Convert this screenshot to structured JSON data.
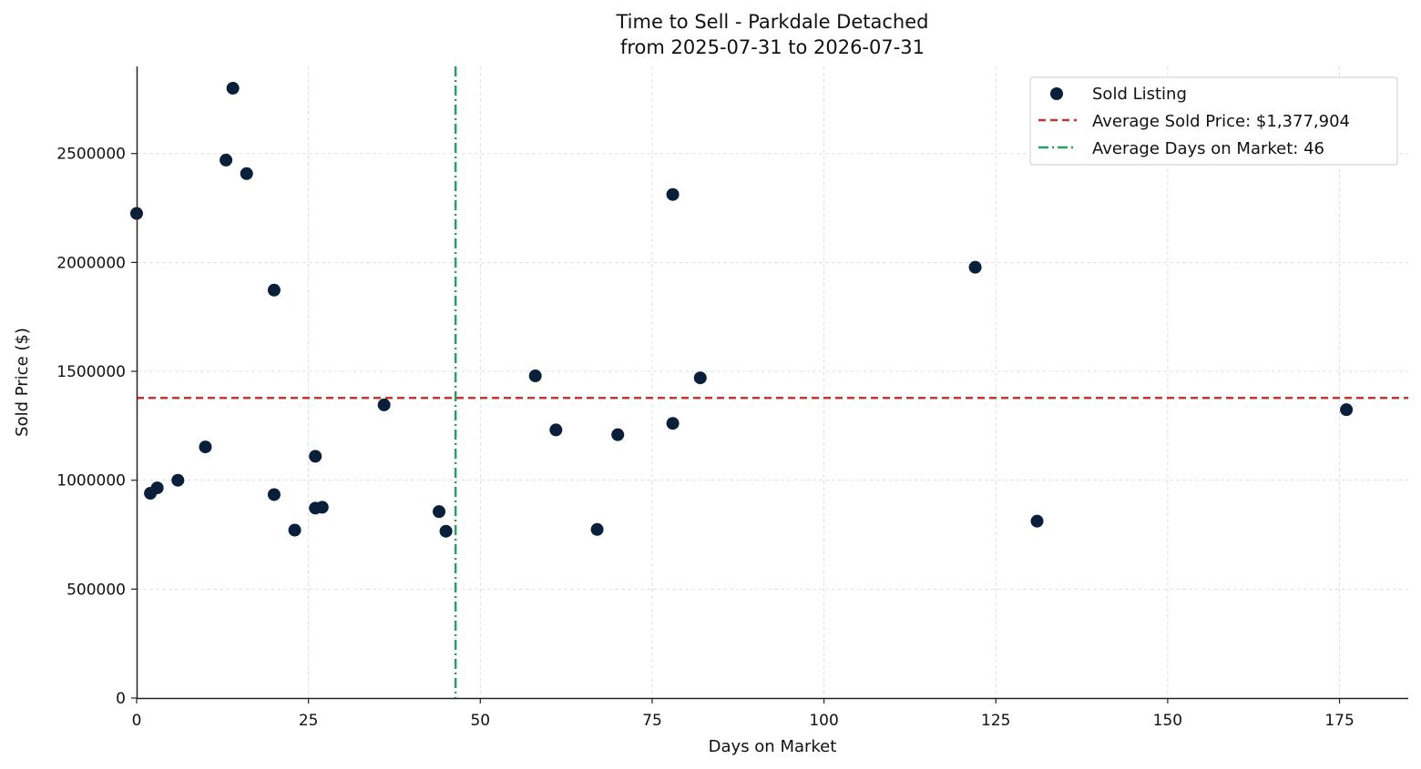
{
  "chart_data": {
    "type": "scatter",
    "title": "Time to Sell - Parkdale Detached",
    "subtitle": "from 2025-07-31 to 2026-07-31",
    "xlabel": "Days on Market",
    "ylabel": "Sold Price ($)",
    "xlim": [
      0,
      185
    ],
    "ylim": [
      0,
      2900000
    ],
    "xticks": [
      0,
      25,
      50,
      75,
      100,
      125,
      150,
      175
    ],
    "yticks": [
      0,
      500000,
      1000000,
      1500000,
      2000000,
      2500000
    ],
    "xtick_labels": [
      "0",
      "25",
      "50",
      "75",
      "100",
      "125",
      "150",
      "175"
    ],
    "ytick_labels": [
      "0",
      "500000",
      "1000000",
      "1500000",
      "2000000",
      "2500000"
    ],
    "grid": true,
    "legend_position": "top-right",
    "series": [
      {
        "name": "Sold Listing",
        "color": "#0a1f3a",
        "points": [
          {
            "x": 0,
            "y": 2225000
          },
          {
            "x": 2,
            "y": 940000
          },
          {
            "x": 3,
            "y": 965000
          },
          {
            "x": 6,
            "y": 1000000
          },
          {
            "x": 10,
            "y": 1153000
          },
          {
            "x": 13,
            "y": 2470000
          },
          {
            "x": 14,
            "y": 2800000
          },
          {
            "x": 16,
            "y": 2408000
          },
          {
            "x": 20,
            "y": 1873000
          },
          {
            "x": 20,
            "y": 934000
          },
          {
            "x": 23,
            "y": 771000
          },
          {
            "x": 26,
            "y": 1110000
          },
          {
            "x": 26,
            "y": 872000
          },
          {
            "x": 27,
            "y": 876000
          },
          {
            "x": 36,
            "y": 1346000
          },
          {
            "x": 44,
            "y": 856000
          },
          {
            "x": 45,
            "y": 766000
          },
          {
            "x": 58,
            "y": 1479000
          },
          {
            "x": 61,
            "y": 1231000
          },
          {
            "x": 67,
            "y": 774000
          },
          {
            "x": 70,
            "y": 1209000
          },
          {
            "x": 78,
            "y": 2312000
          },
          {
            "x": 78,
            "y": 1261000
          },
          {
            "x": 82,
            "y": 1470000
          },
          {
            "x": 122,
            "y": 1978000
          },
          {
            "x": 131,
            "y": 812000
          },
          {
            "x": 176,
            "y": 1324000
          }
        ]
      }
    ],
    "reference_lines": [
      {
        "name": "Average Sold Price: $1,377,904",
        "orientation": "horizontal",
        "value": 1377904,
        "color": "#c0392b",
        "style": "dashed"
      },
      {
        "name": "Average Days on Market: 46",
        "orientation": "vertical",
        "value": 46.4,
        "color": "#27a061",
        "style": "dashdot"
      }
    ]
  }
}
